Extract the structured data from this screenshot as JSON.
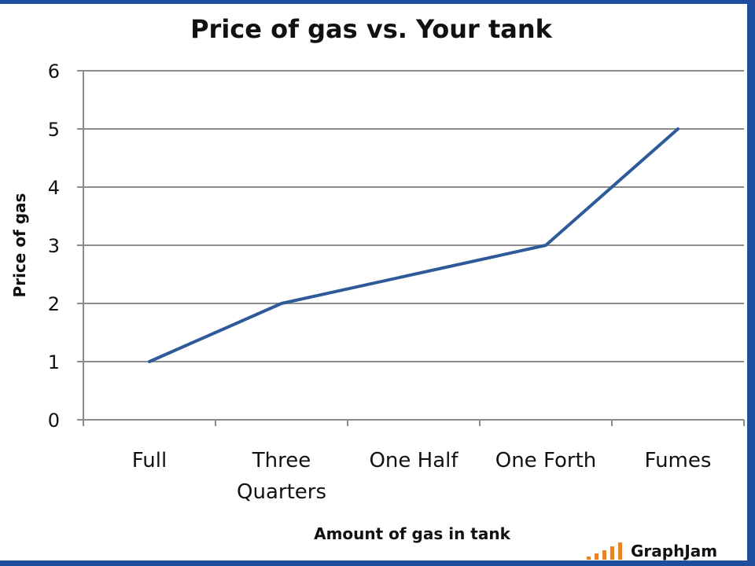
{
  "colors": {
    "line": "#2E5A9A",
    "grid": "#8C8C8C",
    "frame": "#1F4E9E",
    "watermark_bars": "#E8842C"
  },
  "watermark": {
    "text": "GraphJam"
  },
  "chart_data": {
    "type": "line",
    "title": "Price of gas vs. Your tank",
    "xlabel": "Amount of gas in tank",
    "ylabel": "Price of gas",
    "categories": [
      "Full",
      "Three Quarters",
      "One Half",
      "One Forth",
      "Fumes"
    ],
    "categories_display": [
      [
        "Full"
      ],
      [
        "Three",
        "Quarters"
      ],
      [
        "One Half"
      ],
      [
        "One Forth"
      ],
      [
        "Fumes"
      ]
    ],
    "series": [
      {
        "values": [
          1,
          2,
          null,
          3,
          5
        ]
      }
    ],
    "ylim": [
      0,
      6
    ],
    "yticks": [
      0,
      1,
      2,
      3,
      4,
      5,
      6
    ],
    "grid": true,
    "legend": false
  }
}
